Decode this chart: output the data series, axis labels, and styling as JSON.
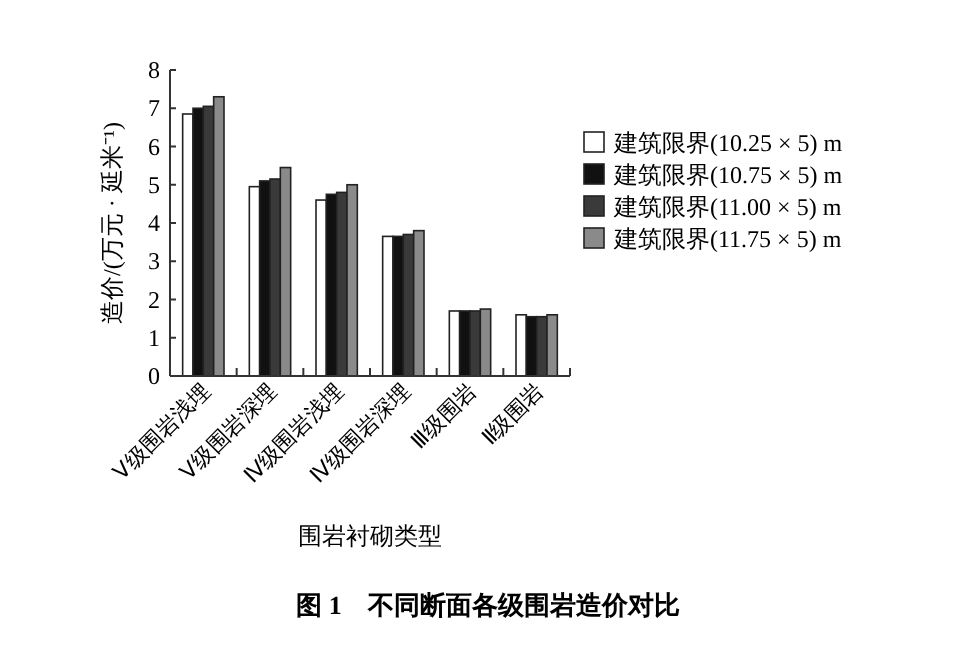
{
  "chart_data": {
    "type": "bar",
    "title": "图 1　不同断面各级围岩造价对比",
    "xlabel": "围岩衬砌类型",
    "ylabel": "造价/(万元 · 延米⁻¹)",
    "categories": [
      "Ⅴ级围岩浅埋",
      "Ⅴ级围岩深埋",
      "Ⅳ级围岩浅埋",
      "Ⅳ级围岩深埋",
      "Ⅲ级围岩",
      "Ⅱ级围岩"
    ],
    "series": [
      {
        "name": "建筑限界(10.25 × 5) m",
        "color": "#ffffff",
        "values": [
          6.85,
          4.95,
          4.6,
          3.65,
          1.7,
          1.6
        ]
      },
      {
        "name": "建筑限界(10.75 × 5) m",
        "color": "#111111",
        "values": [
          7.0,
          5.1,
          4.75,
          3.65,
          1.7,
          1.55
        ]
      },
      {
        "name": "建筑限界(11.00 × 5) m",
        "color": "#3a3a3a",
        "values": [
          7.05,
          5.15,
          4.8,
          3.7,
          1.7,
          1.55
        ]
      },
      {
        "name": "建筑限界(11.75 × 5) m",
        "color": "#8a8a8a",
        "values": [
          7.3,
          5.45,
          5.0,
          3.8,
          1.75,
          1.6
        ]
      }
    ],
    "ylim": [
      0,
      8
    ],
    "yticks": [
      0,
      1,
      2,
      3,
      4,
      5,
      6,
      7,
      8
    ],
    "grid": false,
    "legend": "right"
  }
}
